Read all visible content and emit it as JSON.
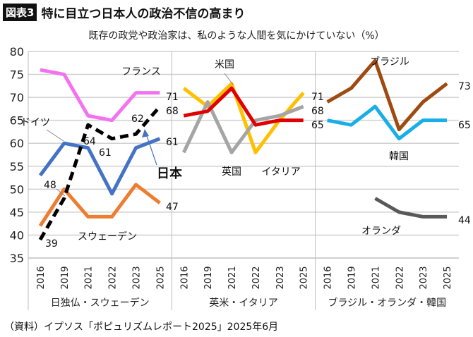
{
  "header": {
    "badge": "図表3",
    "title": "特に目立つ日本人の政治不信の高まり"
  },
  "source": "（資料）イプソス「ポピュリズムレポート2025」2025年6月",
  "chart_data": {
    "type": "line",
    "subtitle": "既存の政党や政治家は、私のような人間を気にかけていない（%）",
    "ylim": [
      35,
      80
    ],
    "yticks": [
      35,
      40,
      45,
      50,
      55,
      60,
      65,
      70,
      75,
      80
    ],
    "grid": true,
    "categories": [
      "2016",
      "2019",
      "2021",
      "2022",
      "2023",
      "2025"
    ],
    "panels": [
      {
        "label": "日独仏・スウェーデン",
        "series": [
          {
            "name": "フランス",
            "color": "#F472F0",
            "values": [
              76,
              75,
              66,
              65,
              71,
              71
            ]
          },
          {
            "name": "ドイツ",
            "color": "#4472C4",
            "values": [
              53,
              60,
              59,
              49,
              59,
              61
            ]
          },
          {
            "name": "スウェーデン",
            "color": "#ED7D31",
            "values": [
              42,
              50,
              44,
              44,
              51,
              47
            ]
          },
          {
            "name": "日本",
            "color": "#000000",
            "dashed": true,
            "values": [
              39,
              48,
              64,
              61,
              62,
              68
            ]
          }
        ]
      },
      {
        "label": "英米・イタリア",
        "series": [
          {
            "name": "イタリア",
            "color": "#FFC000",
            "values": [
              72,
              68,
              73,
              58,
              65,
              71
            ]
          },
          {
            "name": "英国",
            "color": "#A5A5A5",
            "values": [
              58,
              69,
              58,
              65,
              66,
              68
            ]
          },
          {
            "name": "米国",
            "color": "#E00000",
            "values": [
              66,
              67,
              72,
              64,
              65,
              65
            ]
          }
        ]
      },
      {
        "label": "ブラジル・オランダ・韓国",
        "series": [
          {
            "name": "ブラジル",
            "color": "#9E4A10",
            "values": [
              69,
              72,
              78,
              63,
              69,
              73
            ]
          },
          {
            "name": "韓国",
            "color": "#1AAEE8",
            "values": [
              65,
              64,
              68,
              61,
              65,
              65
            ]
          },
          {
            "name": "オランダ",
            "color": "#595959",
            "values": [
              null,
              null,
              48,
              45,
              44,
              44
            ]
          }
        ]
      }
    ],
    "data_labels": [
      "71",
      "61",
      "47",
      "68",
      "48",
      "39",
      "64",
      "61",
      "62",
      "71",
      "68",
      "65",
      "73",
      "65",
      "44"
    ]
  }
}
